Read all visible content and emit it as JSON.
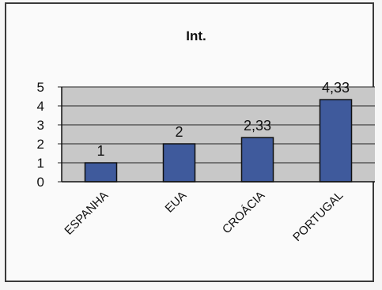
{
  "chart_data": {
    "type": "bar",
    "title": "Int.",
    "categories": [
      "ESPANHA",
      "EUA",
      "CROÁCIA",
      "PORTUGAL"
    ],
    "values": [
      1,
      2,
      2.33,
      4.33
    ],
    "data_labels": [
      "1",
      "2",
      "2,33",
      "4,33"
    ],
    "ylim": [
      0,
      5
    ],
    "yticks": [
      "0",
      "1",
      "2",
      "3",
      "4",
      "5"
    ],
    "xlabel": "",
    "ylabel": "",
    "grid": true,
    "bar_color": "#3f5a9c",
    "plot_bg": "#c8c8c8"
  }
}
